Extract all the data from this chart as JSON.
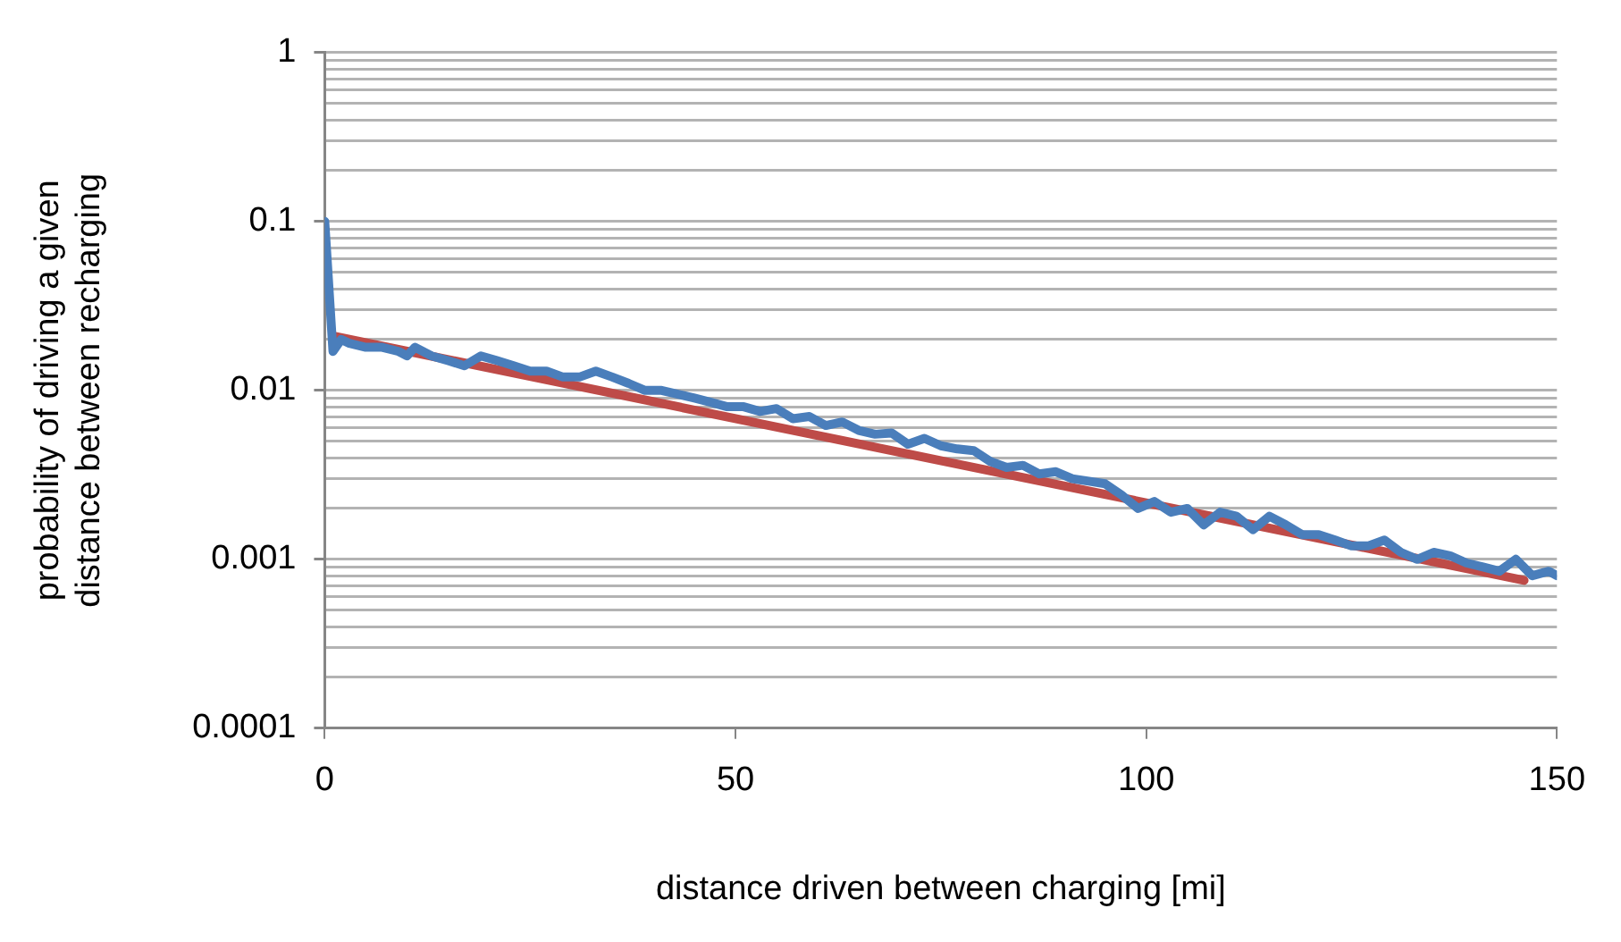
{
  "chart_data": {
    "type": "line",
    "xlabel": "distance driven between charging [mi]",
    "ylabel": "probability of driving a given distance between recharging",
    "log": "y",
    "grid": "y",
    "legend": false,
    "marker": "none",
    "line_style": "solid",
    "xlim": [
      0,
      150
    ],
    "xticks": [
      0,
      50,
      100,
      150
    ],
    "ylim": [
      0.0001,
      1
    ],
    "yticks": [
      0.0001,
      {
        "value": 0.0002,
        "label": null
      },
      {
        "value": 0.0003,
        "label": null
      },
      {
        "value": 0.0004,
        "label": null
      },
      {
        "value": 0.0005,
        "label": null
      },
      {
        "value": 0.0006,
        "label": null
      },
      {
        "value": 0.0007,
        "label": null
      },
      {
        "value": 0.0008,
        "label": null
      },
      {
        "value": 0.0009,
        "label": null
      },
      0.001,
      {
        "value": 0.002,
        "label": null
      },
      {
        "value": 0.003,
        "label": null
      },
      {
        "value": 0.004,
        "label": null
      },
      {
        "value": 0.005,
        "label": null
      },
      {
        "value": 0.006,
        "label": null
      },
      {
        "value": 0.007,
        "label": null
      },
      {
        "value": 0.008,
        "label": null
      },
      {
        "value": 0.009,
        "label": null
      },
      0.01,
      {
        "value": 0.02,
        "label": null
      },
      {
        "value": 0.03,
        "label": null
      },
      {
        "value": 0.04,
        "label": null
      },
      {
        "value": 0.05,
        "label": null
      },
      {
        "value": 0.06,
        "label": null
      },
      {
        "value": 0.07,
        "label": null
      },
      {
        "value": 0.08,
        "label": null
      },
      {
        "value": 0.09,
        "label": null
      },
      0.1,
      {
        "value": 0.2,
        "label": null
      },
      {
        "value": 0.3,
        "label": null
      },
      {
        "value": 0.4,
        "label": null
      },
      {
        "value": 0.5,
        "label": null
      },
      {
        "value": 0.6,
        "label": null
      },
      {
        "value": 0.7,
        "label": null
      },
      {
        "value": 0.8,
        "label": null
      },
      {
        "value": 0.9,
        "label": null
      },
      1
    ],
    "series": [
      {
        "color": "#4a7ebb",
        "x": [
          0,
          1,
          2,
          3,
          5,
          7,
          9,
          10,
          11,
          13,
          15,
          17,
          19,
          21,
          23,
          25,
          27,
          29,
          31,
          33,
          35,
          37,
          39,
          41,
          43,
          45,
          47,
          49,
          51,
          53,
          55,
          57,
          59,
          61,
          63,
          65,
          67,
          69,
          71,
          73,
          75,
          77,
          79,
          81,
          83,
          85,
          87,
          89,
          91,
          93,
          95,
          97,
          99,
          101,
          103,
          105,
          107,
          109,
          111,
          113,
          115,
          117,
          119,
          121,
          123,
          125,
          127,
          129,
          131,
          133,
          135,
          137,
          139,
          141,
          143,
          145,
          147,
          149,
          150
        ],
        "values": [
          0.1,
          0.017,
          0.02,
          0.019,
          0.018,
          0.018,
          0.017,
          0.016,
          0.018,
          0.016,
          0.015,
          0.014,
          0.016,
          0.015,
          0.014,
          0.013,
          0.013,
          0.012,
          0.012,
          0.013,
          0.012,
          0.011,
          0.01,
          0.01,
          0.0095,
          0.009,
          0.0085,
          0.008,
          0.008,
          0.0075,
          0.0078,
          0.0068,
          0.007,
          0.0062,
          0.0065,
          0.0058,
          0.0055,
          0.0056,
          0.0048,
          0.0052,
          0.0047,
          0.0045,
          0.0044,
          0.0038,
          0.0035,
          0.0036,
          0.0032,
          0.0033,
          0.003,
          0.0029,
          0.0028,
          0.0024,
          0.002,
          0.0022,
          0.0019,
          0.002,
          0.0016,
          0.0019,
          0.0018,
          0.0015,
          0.0018,
          0.0016,
          0.0014,
          0.0014,
          0.0013,
          0.0012,
          0.0012,
          0.0013,
          0.0011,
          0.001,
          0.0011,
          0.00105,
          0.00095,
          0.0009,
          0.00085,
          0.001,
          0.0008,
          0.00085,
          0.0008
        ]
      },
      {
        "color": "#be4b48",
        "x": [
          1,
          146
        ],
        "values": [
          0.021,
          0.00075
        ]
      }
    ]
  }
}
